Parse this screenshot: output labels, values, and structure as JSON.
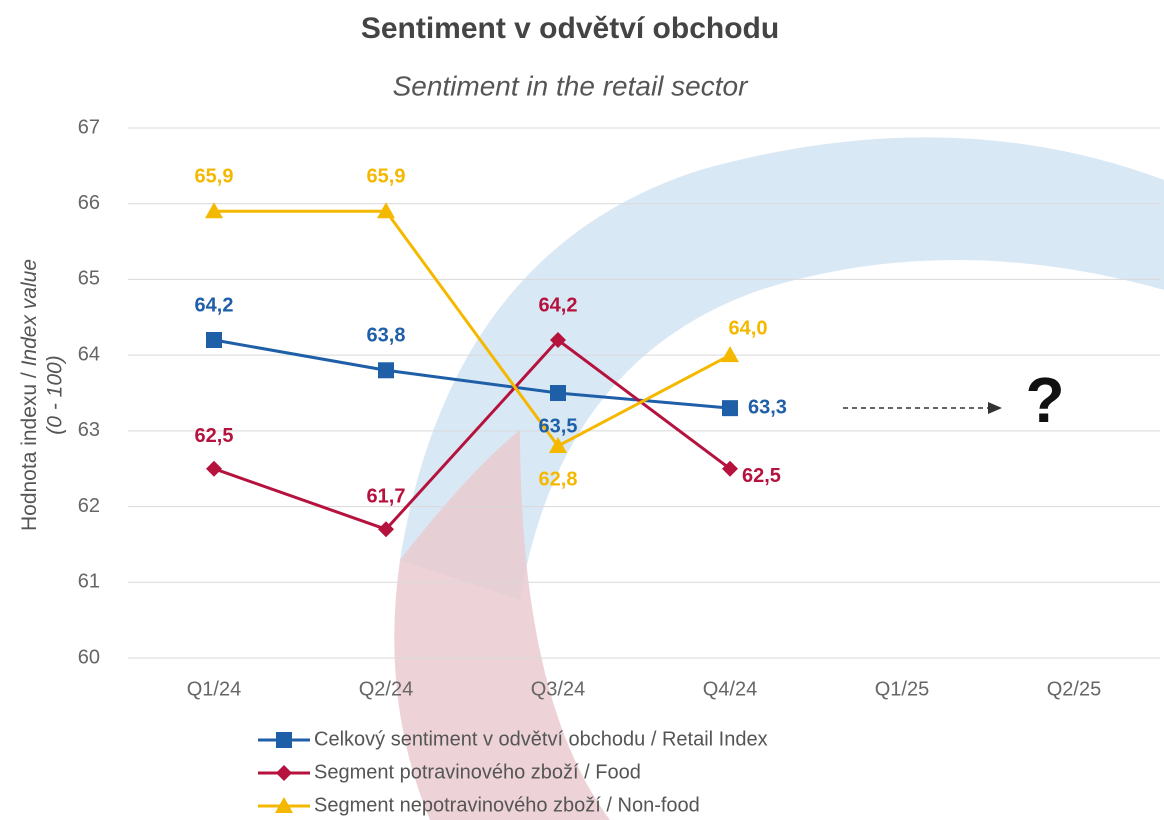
{
  "chart_data": {
    "type": "line",
    "title": "Sentiment v odvětví obchodu",
    "subtitle": "Sentiment in the retail sector",
    "ylabel": {
      "text": "Hodnota indexu / ",
      "italic": "Index value",
      "line2": "(0 - 100)"
    },
    "categories": [
      "Q1/24",
      "Q2/24",
      "Q3/24",
      "Q4/24",
      "Q1/25",
      "Q2/25"
    ],
    "series": [
      {
        "name": "Celkový sentiment v odvětví obchodu / Retail Index",
        "color": "#1f5fa8",
        "marker": "square",
        "values": [
          64.2,
          63.8,
          63.5,
          63.3,
          null,
          null
        ],
        "value_labels": [
          "64,2",
          "63,8",
          "63,5",
          "63,3",
          null,
          null
        ]
      },
      {
        "name": "Segment potravinového zboží / Food",
        "color": "#b5123e",
        "marker": "diamond",
        "values": [
          62.5,
          61.7,
          64.2,
          62.5,
          null,
          null
        ],
        "value_labels": [
          "62,5",
          "61,7",
          "64,2",
          "62,5",
          null,
          null
        ]
      },
      {
        "name": "Segment nepotravinového zboží / Non-food",
        "color": "#f5b800",
        "marker": "triangle",
        "values": [
          65.9,
          65.9,
          62.8,
          64.0,
          null,
          null
        ],
        "value_labels": [
          "65,9",
          "65,9",
          "62,8",
          "64,0",
          null,
          null
        ]
      }
    ],
    "annotation": "?",
    "ylim": [
      60,
      67
    ],
    "yticks": [
      60,
      61,
      62,
      63,
      64,
      65,
      66,
      67
    ],
    "grid": true
  }
}
